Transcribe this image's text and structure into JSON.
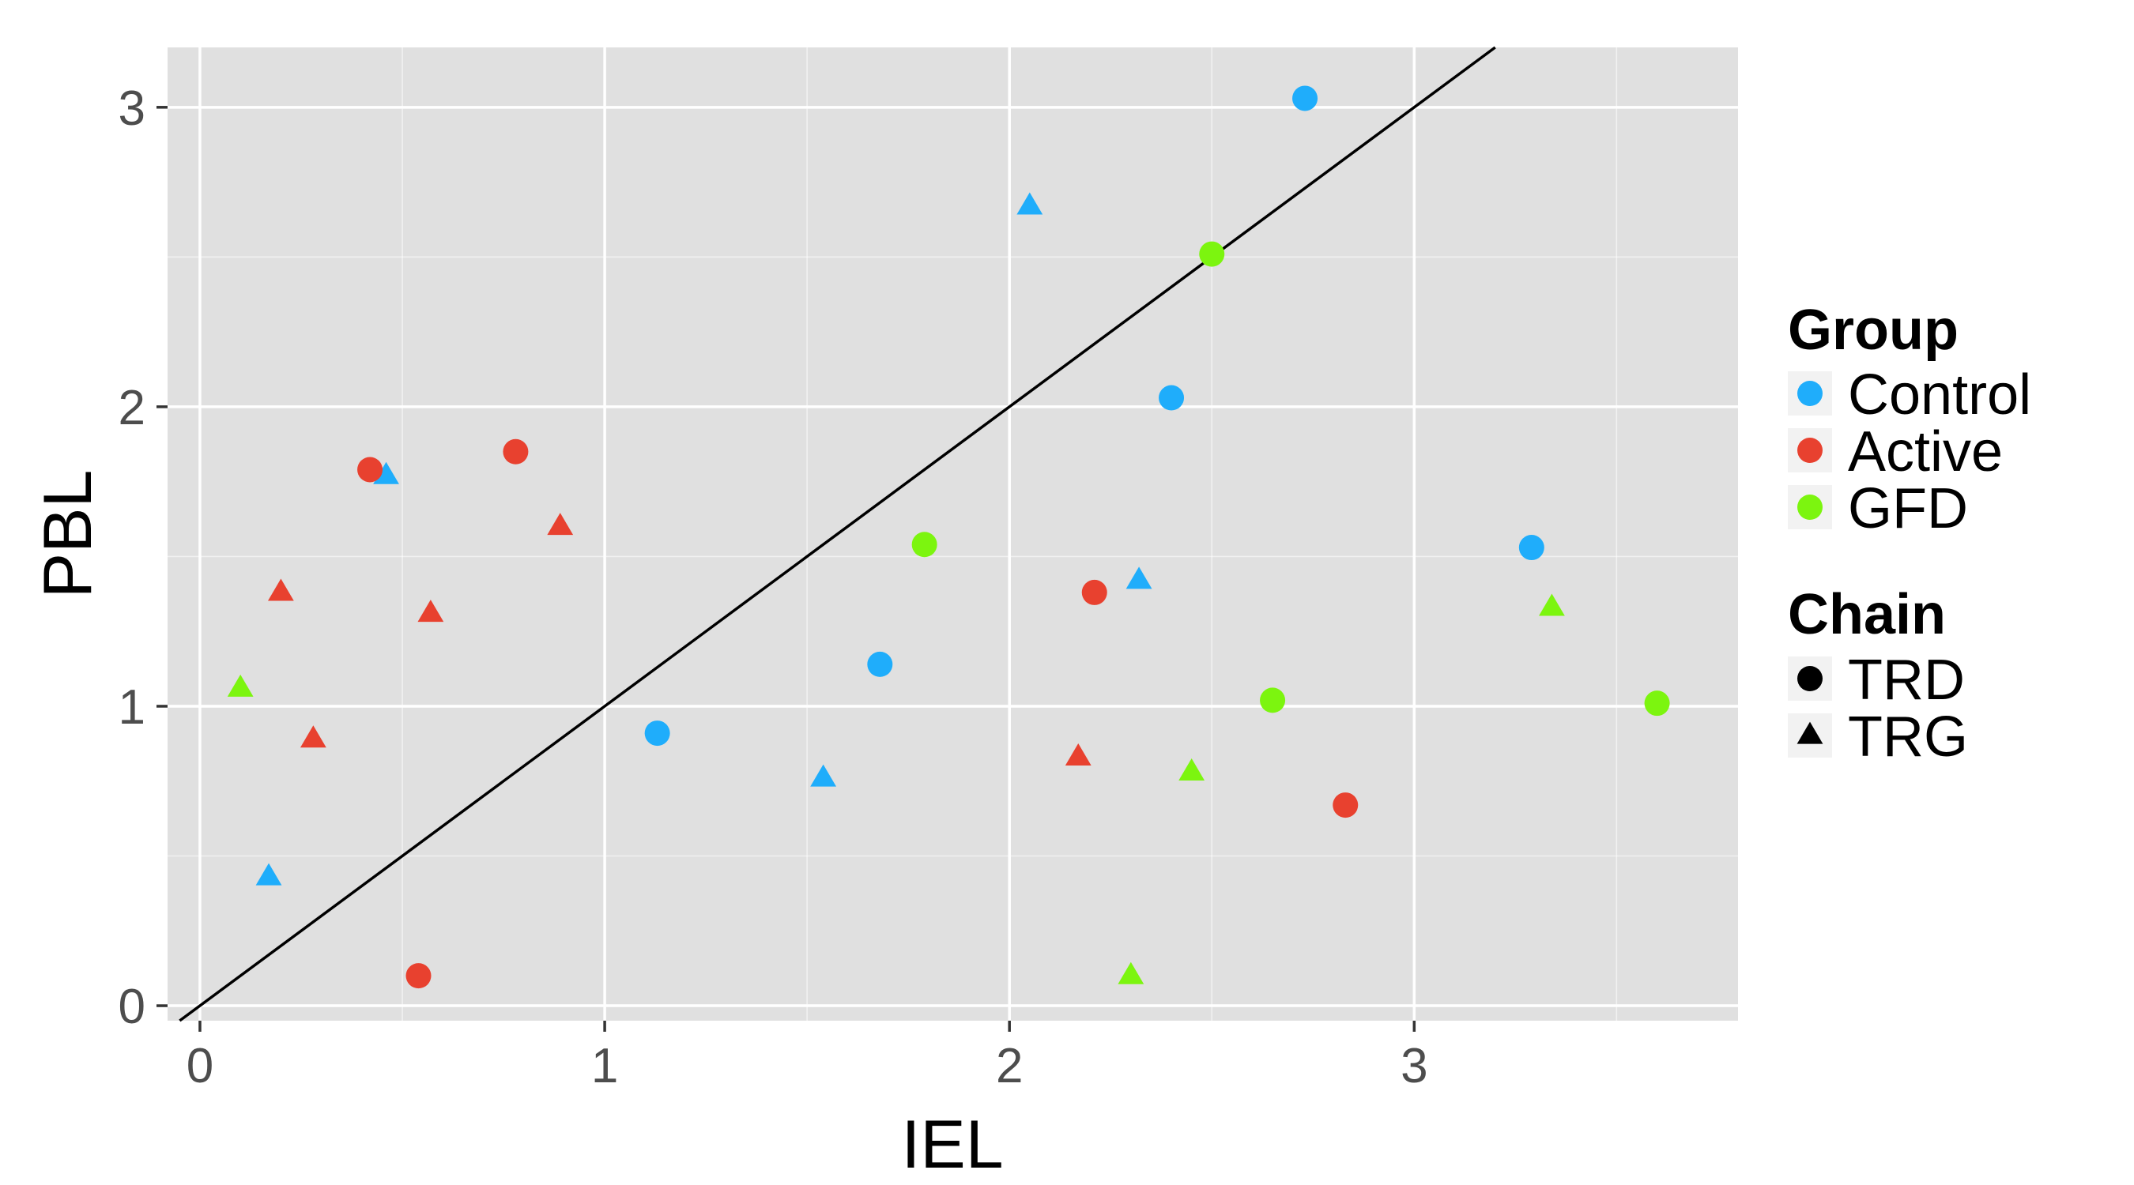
{
  "chart_data": {
    "type": "scatter",
    "xlabel": "IEL",
    "ylabel": "PBL",
    "xlim": [
      -0.08,
      3.8
    ],
    "ylim": [
      -0.05,
      3.2
    ],
    "x_ticks": [
      0,
      1,
      2,
      3
    ],
    "y_ticks": [
      0,
      1,
      2,
      3
    ],
    "grid": true,
    "panel_background": "#e0e0e0",
    "grid_color": "#ffffff",
    "reference_line": {
      "slope": 1,
      "intercept": 0,
      "color": "#000000"
    },
    "legend_position": "right",
    "legend": {
      "group_title": "Group",
      "groups": [
        {
          "label": "Control",
          "color": "#1fadfb"
        },
        {
          "label": "Active",
          "color": "#e8412f"
        },
        {
          "label": "GFD",
          "color": "#7cf50f"
        }
      ],
      "chain_title": "Chain",
      "chains": [
        {
          "label": "TRD",
          "shape": "circle"
        },
        {
          "label": "TRG",
          "shape": "triangle"
        }
      ]
    },
    "points": [
      {
        "x": 2.73,
        "y": 3.03,
        "group": "Control",
        "chain": "TRD"
      },
      {
        "x": 2.4,
        "y": 2.03,
        "group": "Control",
        "chain": "TRD"
      },
      {
        "x": 3.29,
        "y": 1.53,
        "group": "Control",
        "chain": "TRD"
      },
      {
        "x": 1.68,
        "y": 1.14,
        "group": "Control",
        "chain": "TRD"
      },
      {
        "x": 1.13,
        "y": 0.91,
        "group": "Control",
        "chain": "TRD"
      },
      {
        "x": 2.05,
        "y": 2.67,
        "group": "Control",
        "chain": "TRG"
      },
      {
        "x": 0.46,
        "y": 1.77,
        "group": "Control",
        "chain": "TRG"
      },
      {
        "x": 2.32,
        "y": 1.42,
        "group": "Control",
        "chain": "TRG"
      },
      {
        "x": 1.54,
        "y": 0.76,
        "group": "Control",
        "chain": "TRG"
      },
      {
        "x": 0.17,
        "y": 0.43,
        "group": "Control",
        "chain": "TRG"
      },
      {
        "x": 0.42,
        "y": 1.79,
        "group": "Active",
        "chain": "TRD"
      },
      {
        "x": 0.78,
        "y": 1.85,
        "group": "Active",
        "chain": "TRD"
      },
      {
        "x": 2.21,
        "y": 1.38,
        "group": "Active",
        "chain": "TRD"
      },
      {
        "x": 2.83,
        "y": 0.67,
        "group": "Active",
        "chain": "TRD"
      },
      {
        "x": 0.54,
        "y": 0.1,
        "group": "Active",
        "chain": "TRD"
      },
      {
        "x": 0.89,
        "y": 1.6,
        "group": "Active",
        "chain": "TRG"
      },
      {
        "x": 0.2,
        "y": 1.38,
        "group": "Active",
        "chain": "TRG"
      },
      {
        "x": 0.57,
        "y": 1.31,
        "group": "Active",
        "chain": "TRG"
      },
      {
        "x": 0.28,
        "y": 0.89,
        "group": "Active",
        "chain": "TRG"
      },
      {
        "x": 2.17,
        "y": 0.83,
        "group": "Active",
        "chain": "TRG"
      },
      {
        "x": 2.5,
        "y": 2.51,
        "group": "GFD",
        "chain": "TRD"
      },
      {
        "x": 1.79,
        "y": 1.54,
        "group": "GFD",
        "chain": "TRD"
      },
      {
        "x": 2.65,
        "y": 1.02,
        "group": "GFD",
        "chain": "TRD"
      },
      {
        "x": 3.6,
        "y": 1.01,
        "group": "GFD",
        "chain": "TRD"
      },
      {
        "x": 3.34,
        "y": 1.33,
        "group": "GFD",
        "chain": "TRG"
      },
      {
        "x": 0.1,
        "y": 1.06,
        "group": "GFD",
        "chain": "TRG"
      },
      {
        "x": 2.45,
        "y": 0.78,
        "group": "GFD",
        "chain": "TRG"
      },
      {
        "x": 2.3,
        "y": 0.1,
        "group": "GFD",
        "chain": "TRG"
      }
    ]
  }
}
